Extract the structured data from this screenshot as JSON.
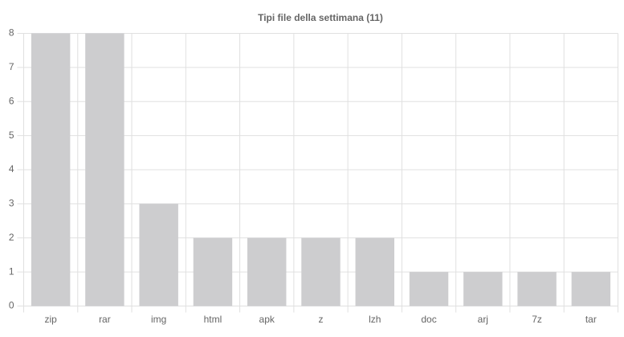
{
  "chart_data": {
    "type": "bar",
    "title": "Tipi file della settimana (11)",
    "categories": [
      "zip",
      "rar",
      "img",
      "html",
      "apk",
      "z",
      "lzh",
      "doc",
      "arj",
      "7z",
      "tar"
    ],
    "values": [
      8,
      8,
      3,
      2,
      2,
      2,
      2,
      1,
      1,
      1,
      1
    ],
    "color": "#cdcdcf",
    "ylim": [
      0,
      8
    ],
    "yticks": [
      0,
      1,
      2,
      3,
      4,
      5,
      6,
      7,
      8
    ],
    "grid": true
  }
}
